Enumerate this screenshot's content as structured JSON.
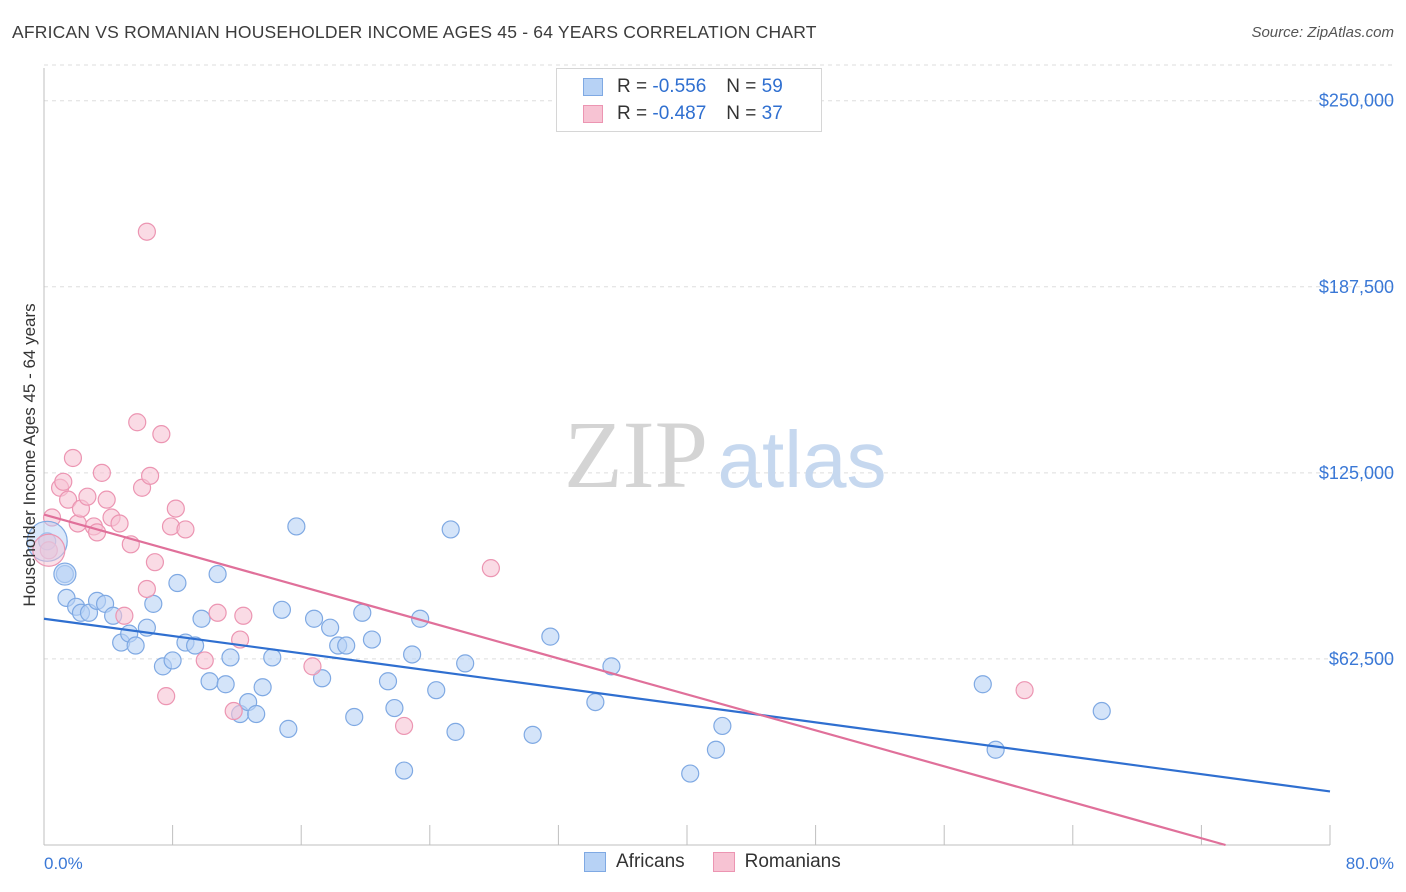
{
  "title": "AFRICAN VS ROMANIAN HOUSEHOLDER INCOME AGES 45 - 64 YEARS CORRELATION CHART",
  "source": "Source: ZipAtlas.com",
  "watermark": {
    "zip": "ZIP",
    "atlas": "atlas"
  },
  "legend": {
    "r_label": "R =",
    "n_label": "N =",
    "africans": {
      "r": "-0.556",
      "n": "59"
    },
    "romanians": {
      "r": "-0.487",
      "n": "37"
    }
  },
  "bottom_legend": {
    "africans": "Africans",
    "romanians": "Romanians"
  },
  "colors": {
    "africans_fill": "#b7d2f5",
    "africans_stroke": "#7fa9e3",
    "africans_line": "#2f6fd0",
    "romanians_fill": "#f7c3d3",
    "romanians_stroke": "#ec95b2",
    "romanians_line": "#e0709a",
    "tick_label": "#3a78d6",
    "grid": "#dddddd"
  },
  "chart_data": {
    "type": "scatter",
    "xlabel": "",
    "ylabel": "Householder Income Ages 45 - 64 years",
    "xlim": [
      0,
      80
    ],
    "ylim": [
      0,
      262000
    ],
    "x_tick_labels": [
      "0.0%",
      "80.0%"
    ],
    "y_ticks": [
      62500,
      125000,
      187500,
      250000
    ],
    "y_tick_labels": [
      "$62,500",
      "$125,000",
      "$187,500",
      "$250,000"
    ],
    "series": [
      {
        "name": "Africans",
        "points": [
          [
            0.2,
            102000
          ],
          [
            1.3,
            91000
          ],
          [
            1.4,
            83000
          ],
          [
            2.0,
            80000
          ],
          [
            2.3,
            78000
          ],
          [
            2.8,
            78000
          ],
          [
            3.3,
            82000
          ],
          [
            3.8,
            81000
          ],
          [
            4.3,
            77000
          ],
          [
            4.8,
            68000
          ],
          [
            5.3,
            71000
          ],
          [
            5.7,
            67000
          ],
          [
            6.4,
            73000
          ],
          [
            6.8,
            81000
          ],
          [
            7.4,
            60000
          ],
          [
            8.0,
            62000
          ],
          [
            8.3,
            88000
          ],
          [
            8.8,
            68000
          ],
          [
            9.4,
            67000
          ],
          [
            9.8,
            76000
          ],
          [
            10.3,
            55000
          ],
          [
            10.8,
            91000
          ],
          [
            11.3,
            54000
          ],
          [
            11.6,
            63000
          ],
          [
            12.2,
            44000
          ],
          [
            12.7,
            48000
          ],
          [
            13.2,
            44000
          ],
          [
            13.6,
            53000
          ],
          [
            14.2,
            63000
          ],
          [
            14.8,
            79000
          ],
          [
            15.2,
            39000
          ],
          [
            15.7,
            107000
          ],
          [
            16.8,
            76000
          ],
          [
            17.3,
            56000
          ],
          [
            17.8,
            73000
          ],
          [
            18.3,
            67000
          ],
          [
            18.8,
            67000
          ],
          [
            19.3,
            43000
          ],
          [
            19.8,
            78000
          ],
          [
            20.4,
            69000
          ],
          [
            21.4,
            55000
          ],
          [
            21.8,
            46000
          ],
          [
            22.4,
            25000
          ],
          [
            22.9,
            64000
          ],
          [
            23.4,
            76000
          ],
          [
            24.4,
            52000
          ],
          [
            25.3,
            106000
          ],
          [
            25.6,
            38000
          ],
          [
            26.2,
            61000
          ],
          [
            30.4,
            37000
          ],
          [
            31.5,
            70000
          ],
          [
            34.3,
            48000
          ],
          [
            35.3,
            60000
          ],
          [
            40.2,
            24000
          ],
          [
            41.8,
            32000
          ],
          [
            42.2,
            40000
          ],
          [
            58.4,
            54000
          ],
          [
            59.2,
            32000
          ],
          [
            65.8,
            45000
          ]
        ],
        "trend": {
          "x": [
            0,
            80
          ],
          "y": [
            76000,
            18000
          ]
        }
      },
      {
        "name": "Romanians",
        "points": [
          [
            0.3,
            99000
          ],
          [
            0.5,
            110000
          ],
          [
            1.0,
            120000
          ],
          [
            1.2,
            122000
          ],
          [
            1.5,
            116000
          ],
          [
            1.8,
            130000
          ],
          [
            2.1,
            108000
          ],
          [
            2.3,
            113000
          ],
          [
            2.7,
            117000
          ],
          [
            3.1,
            107000
          ],
          [
            3.3,
            105000
          ],
          [
            3.6,
            125000
          ],
          [
            3.9,
            116000
          ],
          [
            4.2,
            110000
          ],
          [
            4.7,
            108000
          ],
          [
            5.0,
            77000
          ],
          [
            5.4,
            101000
          ],
          [
            5.8,
            142000
          ],
          [
            6.1,
            120000
          ],
          [
            6.4,
            86000
          ],
          [
            6.6,
            124000
          ],
          [
            6.9,
            95000
          ],
          [
            7.3,
            138000
          ],
          [
            7.9,
            107000
          ],
          [
            8.2,
            113000
          ],
          [
            7.6,
            50000
          ],
          [
            8.8,
            106000
          ],
          [
            6.4,
            206000
          ],
          [
            10.0,
            62000
          ],
          [
            10.8,
            78000
          ],
          [
            11.8,
            45000
          ],
          [
            12.2,
            69000
          ],
          [
            12.4,
            77000
          ],
          [
            16.7,
            60000
          ],
          [
            22.4,
            40000
          ],
          [
            27.8,
            93000
          ],
          [
            61.0,
            52000
          ]
        ],
        "trend": {
          "x": [
            0,
            73.5
          ],
          "y": [
            111000,
            0
          ]
        }
      }
    ]
  }
}
